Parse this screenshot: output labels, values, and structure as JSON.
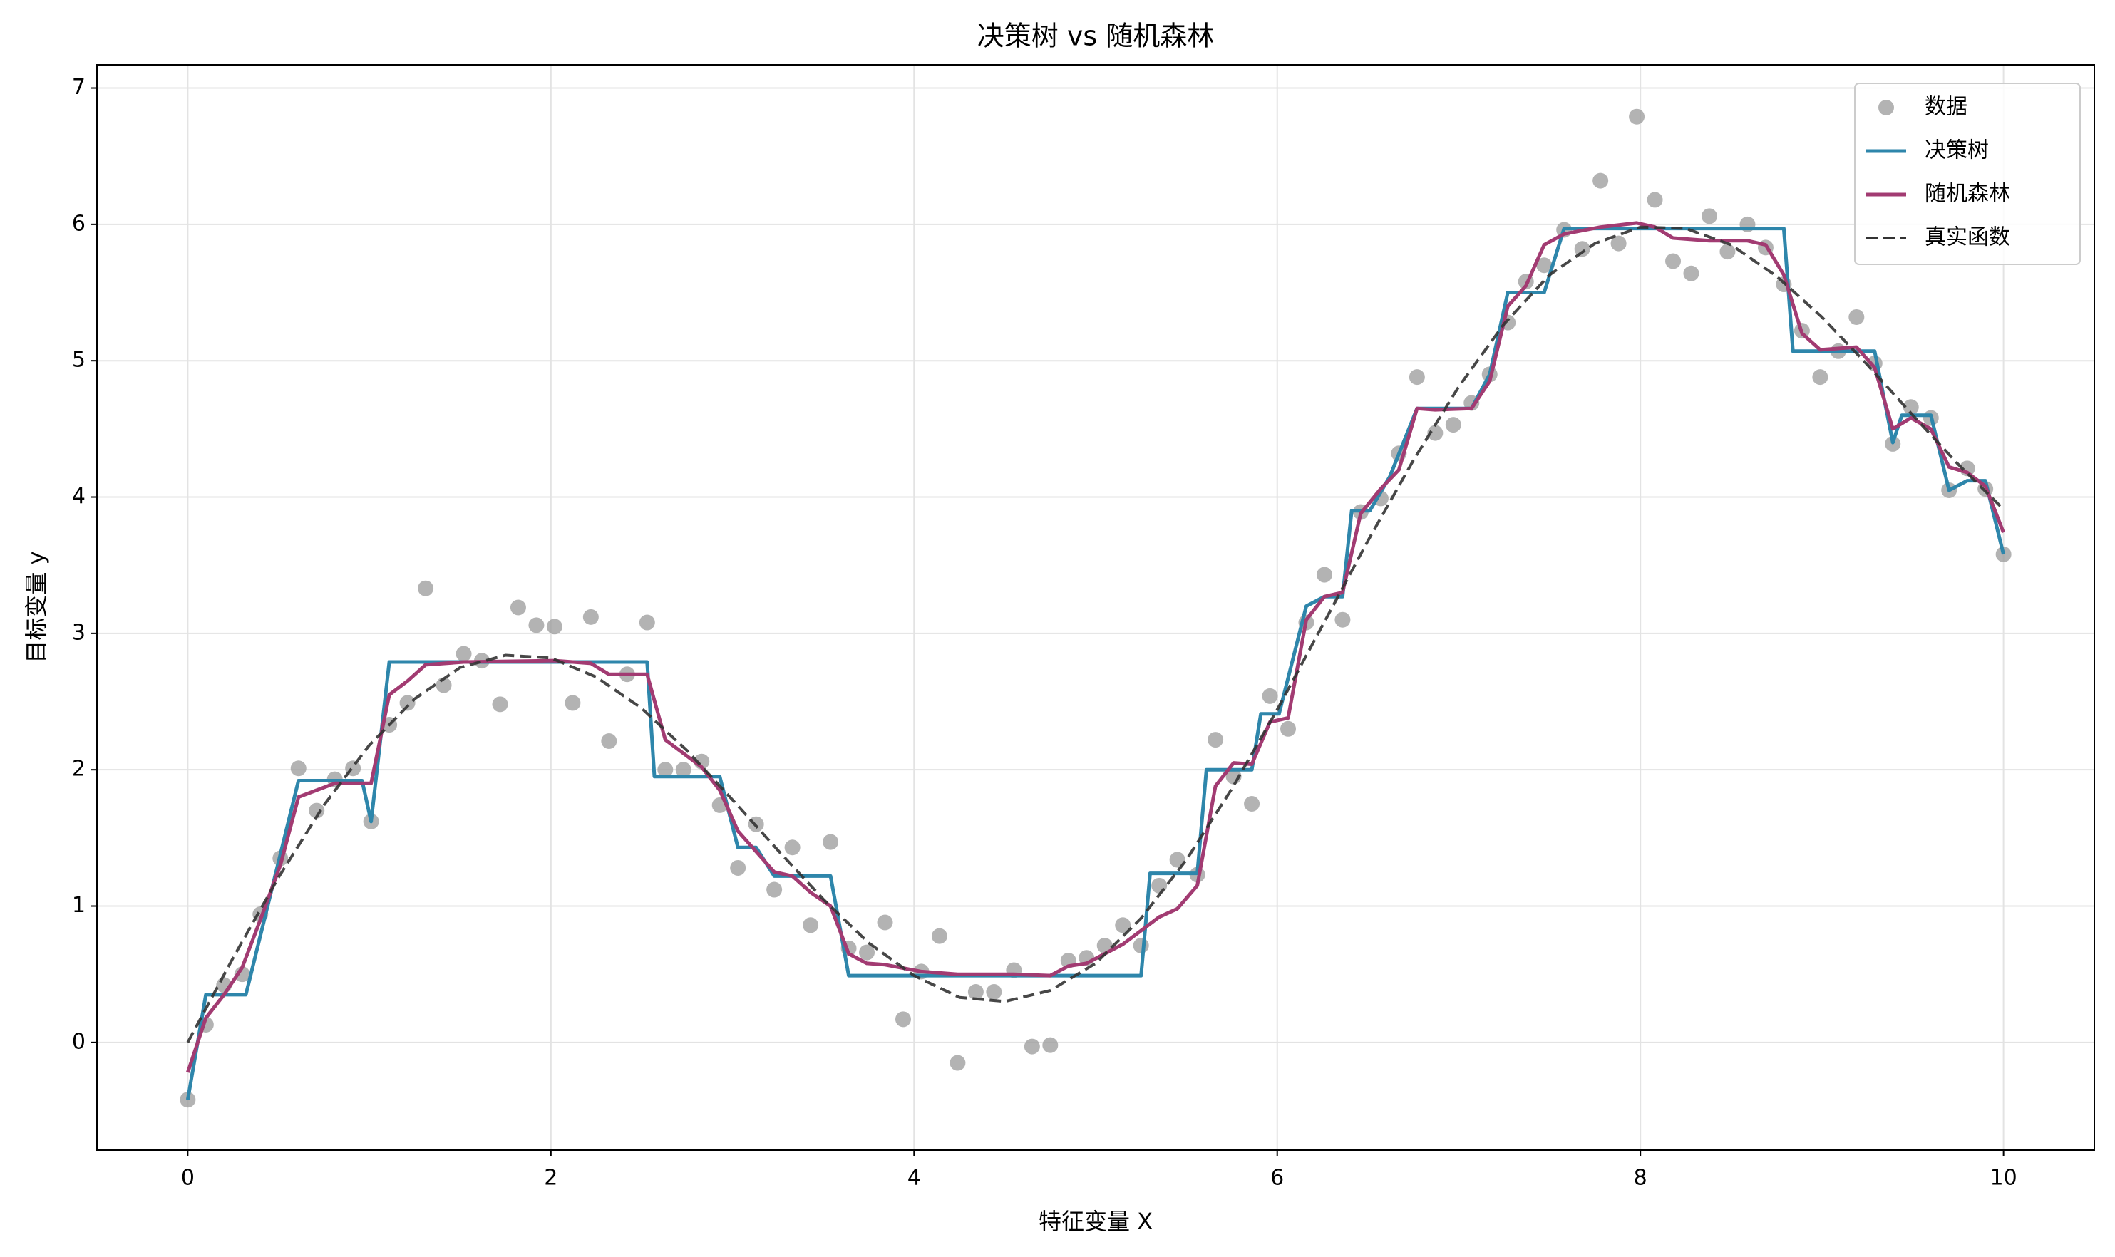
{
  "chart_data": {
    "type": "combo",
    "title": "决策树 vs 随机森林",
    "xlabel": "特征变量 X",
    "ylabel": "目标变量 y",
    "xlim": [
      -0.5,
      10.5
    ],
    "ylim": [
      -0.79,
      7.17
    ],
    "xticks": [
      0,
      2,
      4,
      6,
      8,
      10
    ],
    "yticks": [
      0,
      1,
      2,
      3,
      4,
      5,
      6,
      7
    ],
    "grid": true,
    "legend": "upper right",
    "series": [
      {
        "name": "数据",
        "type": "scatter",
        "color": "#999999",
        "x": [
          0,
          0.1,
          0.2,
          0.3,
          0.4,
          0.51,
          0.61,
          0.71,
          0.81,
          0.91,
          1.01,
          1.11,
          1.21,
          1.31,
          1.41,
          1.52,
          1.62,
          1.72,
          1.82,
          1.92,
          2.02,
          2.12,
          2.22,
          2.32,
          2.42,
          2.53,
          2.63,
          2.73,
          2.83,
          2.93,
          3.03,
          3.13,
          3.23,
          3.33,
          3.43,
          3.54,
          3.64,
          3.74,
          3.84,
          3.94,
          4.04,
          4.14,
          4.24,
          4.34,
          4.44,
          4.55,
          4.65,
          4.75,
          4.85,
          4.95,
          5.05,
          5.15,
          5.25,
          5.35,
          5.45,
          5.56,
          5.66,
          5.76,
          5.86,
          5.96,
          6.06,
          6.16,
          6.26,
          6.36,
          6.46,
          6.57,
          6.67,
          6.77,
          6.87,
          6.97,
          7.07,
          7.17,
          7.27,
          7.37,
          7.47,
          7.58,
          7.68,
          7.78,
          7.88,
          7.98,
          8.08,
          8.18,
          8.28,
          8.38,
          8.48,
          8.59,
          8.69,
          8.79,
          8.89,
          8.99,
          9.09,
          9.19,
          9.29,
          9.39,
          9.49,
          9.6,
          9.7,
          9.8,
          9.9,
          10
        ],
        "values": [
          -0.42,
          0.13,
          0.42,
          0.5,
          0.94,
          1.35,
          2.01,
          1.7,
          1.93,
          2.01,
          1.62,
          2.33,
          2.49,
          3.33,
          2.62,
          2.85,
          2.8,
          2.48,
          3.19,
          3.06,
          3.05,
          2.49,
          3.12,
          2.21,
          2.7,
          3.08,
          2.0,
          2.0,
          2.06,
          1.74,
          1.28,
          1.6,
          1.12,
          1.43,
          0.86,
          1.47,
          0.69,
          0.66,
          0.88,
          0.17,
          0.52,
          0.78,
          -0.15,
          0.37,
          0.37,
          0.53,
          -0.03,
          -0.02,
          0.6,
          0.62,
          0.71,
          0.86,
          0.71,
          1.15,
          1.34,
          1.23,
          2.22,
          1.95,
          1.75,
          2.54,
          2.3,
          3.08,
          3.43,
          3.1,
          3.89,
          3.99,
          4.32,
          4.88,
          4.47,
          4.53,
          4.69,
          4.9,
          5.28,
          5.58,
          5.7,
          5.96,
          5.82,
          6.32,
          5.86,
          6.79,
          6.18,
          5.73,
          5.64,
          6.06,
          5.8,
          6.0,
          5.83,
          5.56,
          5.22,
          4.88,
          5.07,
          5.32,
          4.98,
          4.39,
          4.66,
          4.58,
          4.05,
          4.21,
          4.06,
          3.58
        ]
      },
      {
        "name": "决策树",
        "type": "line",
        "color": "#2e86ab",
        "x": [
          0,
          0.1,
          0.32,
          0.61,
          0.96,
          1.01,
          1.11,
          2.53,
          2.57,
          2.93,
          3.03,
          3.13,
          3.23,
          3.54,
          3.64,
          5.25,
          5.3,
          5.56,
          5.61,
          5.86,
          5.91,
          6.01,
          6.16,
          6.26,
          6.36,
          6.41,
          6.51,
          6.62,
          6.77,
          7.07,
          7.17,
          7.27,
          7.47,
          7.58,
          8.79,
          8.84,
          9.29,
          9.39,
          9.44,
          9.6,
          9.7,
          9.8,
          9.9,
          10
        ],
        "values": [
          -0.42,
          0.35,
          0.35,
          1.92,
          1.92,
          1.62,
          2.79,
          2.79,
          1.95,
          1.95,
          1.43,
          1.43,
          1.22,
          1.22,
          0.49,
          0.49,
          1.24,
          1.24,
          2.0,
          2.0,
          2.41,
          2.41,
          3.2,
          3.27,
          3.27,
          3.9,
          3.9,
          4.15,
          4.65,
          4.65,
          4.9,
          5.5,
          5.5,
          5.97,
          5.97,
          5.07,
          5.07,
          4.4,
          4.6,
          4.6,
          4.05,
          4.12,
          4.12,
          3.58
        ]
      },
      {
        "name": "随机森林",
        "type": "line",
        "color": "#a23b72",
        "x": [
          0,
          0.1,
          0.2,
          0.3,
          0.4,
          0.51,
          0.61,
          0.71,
          0.81,
          0.91,
          1.01,
          1.11,
          1.21,
          1.31,
          1.52,
          2.02,
          2.22,
          2.32,
          2.53,
          2.63,
          2.73,
          2.83,
          2.93,
          3.03,
          3.13,
          3.23,
          3.33,
          3.43,
          3.54,
          3.64,
          3.74,
          3.84,
          4.04,
          4.24,
          4.55,
          4.75,
          4.85,
          4.95,
          5.05,
          5.15,
          5.25,
          5.35,
          5.45,
          5.56,
          5.66,
          5.76,
          5.86,
          5.96,
          6.06,
          6.16,
          6.26,
          6.36,
          6.46,
          6.57,
          6.67,
          6.77,
          6.87,
          7.07,
          7.17,
          7.27,
          7.37,
          7.47,
          7.58,
          7.78,
          7.98,
          8.08,
          8.18,
          8.38,
          8.59,
          8.69,
          8.79,
          8.89,
          8.99,
          9.19,
          9.29,
          9.39,
          9.49,
          9.6,
          9.7,
          9.8,
          9.9,
          10
        ],
        "values": [
          -0.22,
          0.18,
          0.35,
          0.55,
          0.9,
          1.3,
          1.8,
          1.85,
          1.9,
          1.9,
          1.9,
          2.55,
          2.65,
          2.77,
          2.79,
          2.8,
          2.78,
          2.7,
          2.7,
          2.22,
          2.12,
          2.02,
          1.85,
          1.55,
          1.4,
          1.25,
          1.22,
          1.1,
          1.0,
          0.65,
          0.58,
          0.57,
          0.52,
          0.5,
          0.5,
          0.49,
          0.56,
          0.58,
          0.65,
          0.72,
          0.82,
          0.92,
          0.98,
          1.15,
          1.88,
          2.05,
          2.04,
          2.35,
          2.38,
          3.1,
          3.27,
          3.3,
          3.88,
          4.06,
          4.2,
          4.65,
          4.64,
          4.65,
          4.85,
          5.4,
          5.55,
          5.85,
          5.93,
          5.98,
          6.01,
          5.98,
          5.9,
          5.88,
          5.88,
          5.85,
          5.63,
          5.2,
          5.08,
          5.1,
          4.95,
          4.5,
          4.58,
          4.5,
          4.22,
          4.18,
          4.08,
          3.74
        ]
      },
      {
        "name": "真实函数",
        "type": "line",
        "color": "#333333",
        "dashed": true,
        "x": [
          0,
          0.25,
          0.5,
          0.75,
          1,
          1.25,
          1.5,
          1.75,
          2,
          2.25,
          2.5,
          2.75,
          3,
          3.25,
          3.5,
          3.75,
          4,
          4.25,
          4.5,
          4.75,
          5,
          5.25,
          5.5,
          5.75,
          6,
          6.25,
          6.5,
          6.75,
          7,
          7.25,
          7.5,
          7.75,
          8,
          8.25,
          8.5,
          8.75,
          9,
          9.25,
          9.5,
          9.75,
          10
        ],
        "values": [
          0,
          0.62,
          1.21,
          1.74,
          2.18,
          2.52,
          2.75,
          2.84,
          2.82,
          2.68,
          2.45,
          2.14,
          1.78,
          1.41,
          1.05,
          0.73,
          0.49,
          0.33,
          0.3,
          0.38,
          0.58,
          0.91,
          1.34,
          1.86,
          2.44,
          3.06,
          3.68,
          4.27,
          4.81,
          5.27,
          5.63,
          5.86,
          5.98,
          5.97,
          5.85,
          5.62,
          5.32,
          4.97,
          4.6,
          4.24,
          3.91
        ]
      }
    ]
  }
}
